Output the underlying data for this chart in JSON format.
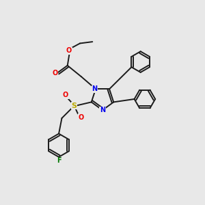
{
  "bg_color": "#e8e8e8",
  "bond_color": "#1a1a1a",
  "N_color": "#0000ee",
  "O_color": "#ee0000",
  "S_color": "#bbaa00",
  "F_color": "#007700",
  "lw": 1.4,
  "fig_size": [
    3.0,
    3.0
  ],
  "dpi": 100,
  "xlim": [
    0,
    10
  ],
  "ylim": [
    0,
    10
  ]
}
